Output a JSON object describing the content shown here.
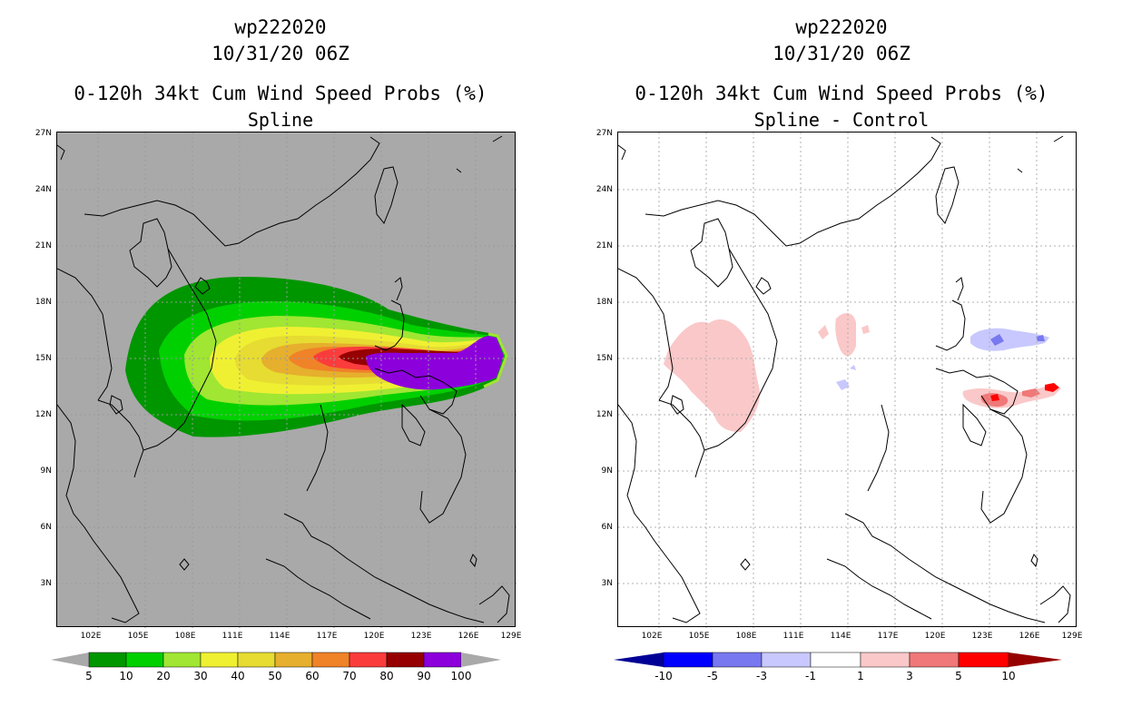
{
  "left": {
    "title_id": "wp222020",
    "title_time": "10/31/20 06Z",
    "title_product": "0-120h 34kt Cum Wind Speed Probs (%)",
    "subtitle": "Spline",
    "colorbar": {
      "labels": [
        "5",
        "10",
        "20",
        "30",
        "40",
        "50",
        "60",
        "70",
        "80",
        "90",
        "100"
      ],
      "colors": [
        "#009600",
        "#00d000",
        "#a0e632",
        "#f0f032",
        "#e6dc32",
        "#e6af2d",
        "#f08228",
        "#fa3c3c",
        "#960000",
        "#8c00dc"
      ],
      "under_color": "#a9a9a9",
      "over_color": "#a9a9a9"
    }
  },
  "right": {
    "title_id": "wp222020",
    "title_time": "10/31/20 06Z",
    "title_product": "0-120h 34kt Cum Wind Speed Probs (%)",
    "subtitle": "Spline - Control",
    "colorbar": {
      "labels": [
        "-10",
        "-5",
        "-3",
        "-1",
        "1",
        "3",
        "5",
        "10"
      ],
      "colors": [
        "#0000ff",
        "#7878f0",
        "#c8c8ff",
        "#ffffff",
        "#fac8c8",
        "#f07878",
        "#ff0000"
      ],
      "under_color": "#000096",
      "over_color": "#960000"
    }
  },
  "axes": {
    "y_ticks": [
      "27N",
      "24N",
      "21N",
      "18N",
      "15N",
      "12N",
      "9N",
      "6N",
      "3N"
    ],
    "x_ticks": [
      "102E",
      "105E",
      "108E",
      "111E",
      "114E",
      "117E",
      "120E",
      "123E",
      "126E",
      "129E"
    ],
    "lon_range": [
      99.3,
      129.7
    ],
    "lat_range": [
      0.6,
      27
    ]
  }
}
